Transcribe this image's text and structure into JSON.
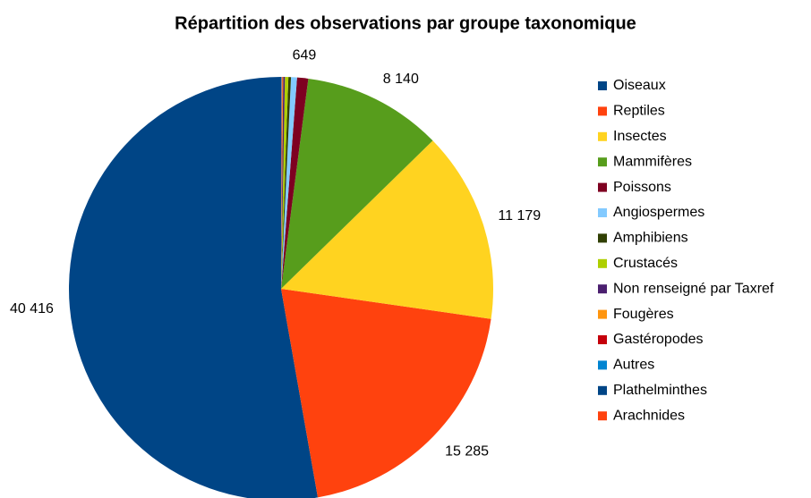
{
  "chart_data": {
    "type": "pie",
    "title": "Répartition des observations par groupe taxonomique",
    "categories": [
      "Oiseaux",
      "Reptiles",
      "Insectes",
      "Mammifères",
      "Poissons",
      "Angiospermes",
      "Amphibiens",
      "Crustacés",
      "Non renseigné par Taxref",
      "Fougères",
      "Gastéropodes",
      "Autres",
      "Plathelminthes",
      "Arachnides"
    ],
    "values": [
      40416,
      15285,
      11179,
      8140,
      649,
      350,
      150,
      200,
      100,
      50,
      30,
      20,
      10,
      10
    ],
    "value_labels": [
      "40 416",
      "15 285",
      "11 179",
      "8 140",
      "649",
      null,
      null,
      null,
      null,
      null,
      null,
      null,
      null,
      null
    ],
    "colors": [
      "#004586",
      "#ff420e",
      "#ffd320",
      "#579d1c",
      "#7e0021",
      "#83caff",
      "#314004",
      "#aecf00",
      "#4b1f6f",
      "#ff950e",
      "#c5000b",
      "#0084d1",
      "#004586",
      "#ff420e"
    ],
    "direction": "counterclockwise",
    "legend": "right"
  }
}
